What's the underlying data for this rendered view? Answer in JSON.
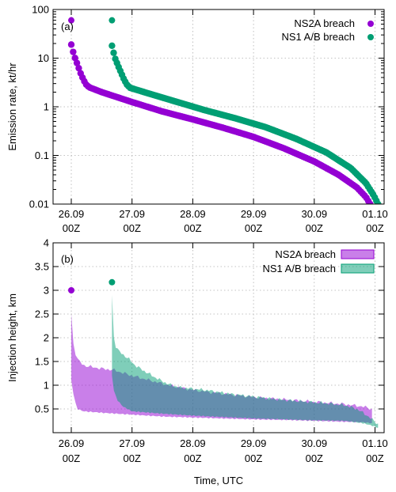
{
  "chart_data": [
    {
      "type": "scatter",
      "panel_label": "(a)",
      "xlabel": "",
      "ylabel": "Emission rate, kt/hr",
      "yscale": "log",
      "xlim": [
        -0.3,
        5.15
      ],
      "ylim": [
        0.01,
        100
      ],
      "xticks": [
        {
          "x": 0,
          "line1": "26.09",
          "line2": "00Z"
        },
        {
          "x": 1,
          "line1": "27.09",
          "line2": "00Z"
        },
        {
          "x": 2,
          "line1": "28.09",
          "line2": "00Z"
        },
        {
          "x": 3,
          "line1": "29.09",
          "line2": "00Z"
        },
        {
          "x": 4,
          "line1": "30.09",
          "line2": "00Z"
        },
        {
          "x": 5,
          "line1": "01.10",
          "line2": "00Z"
        }
      ],
      "yticks": [
        {
          "y": 0.01,
          "label": "0.01"
        },
        {
          "y": 0.1,
          "label": "0.1"
        },
        {
          "y": 1,
          "label": "1"
        },
        {
          "y": 10,
          "label": "10"
        },
        {
          "y": 100,
          "label": "100"
        }
      ],
      "grid": true,
      "legend_position": "top-right",
      "series": [
        {
          "name": "NS2A breach",
          "color": "#9400d3",
          "start_marker": {
            "x": 0.0,
            "y": 60
          },
          "points": [
            [
              0.0,
              19
            ],
            [
              0.02,
              15
            ],
            [
              0.05,
              11
            ],
            [
              0.1,
              7.5
            ],
            [
              0.15,
              5
            ],
            [
              0.2,
              3.6
            ],
            [
              0.25,
              2.8
            ],
            [
              0.3,
              2.5
            ],
            [
              0.5,
              2.0
            ],
            [
              1.0,
              1.25
            ],
            [
              1.5,
              0.8
            ],
            [
              2.0,
              0.55
            ],
            [
              2.5,
              0.37
            ],
            [
              3.0,
              0.24
            ],
            [
              3.5,
              0.14
            ],
            [
              4.0,
              0.075
            ],
            [
              4.4,
              0.04
            ],
            [
              4.7,
              0.022
            ],
            [
              4.85,
              0.014
            ],
            [
              4.92,
              0.01
            ]
          ]
        },
        {
          "name": "NS1 A/B breach",
          "color": "#009e73",
          "start_marker": {
            "x": 0.67,
            "y": 60
          },
          "points": [
            [
              0.67,
              18
            ],
            [
              0.69,
              14
            ],
            [
              0.72,
              10
            ],
            [
              0.77,
              7
            ],
            [
              0.82,
              5
            ],
            [
              0.87,
              3.6
            ],
            [
              0.92,
              2.8
            ],
            [
              0.97,
              2.45
            ],
            [
              1.2,
              2.0
            ],
            [
              1.7,
              1.3
            ],
            [
              2.2,
              0.85
            ],
            [
              2.7,
              0.58
            ],
            [
              3.2,
              0.38
            ],
            [
              3.7,
              0.22
            ],
            [
              4.2,
              0.115
            ],
            [
              4.6,
              0.055
            ],
            [
              4.85,
              0.027
            ],
            [
              4.98,
              0.015
            ],
            [
              5.05,
              0.01
            ]
          ]
        }
      ]
    },
    {
      "type": "area",
      "panel_label": "(b)",
      "xlabel": "Time, UTC",
      "ylabel": "Injection height, km",
      "xlim": [
        -0.3,
        5.15
      ],
      "ylim": [
        0,
        4
      ],
      "xticks": [
        {
          "x": 0,
          "line1": "26.09",
          "line2": "00Z"
        },
        {
          "x": 1,
          "line1": "27.09",
          "line2": "00Z"
        },
        {
          "x": 2,
          "line1": "28.09",
          "line2": "00Z"
        },
        {
          "x": 3,
          "line1": "29.09",
          "line2": "00Z"
        },
        {
          "x": 4,
          "line1": "30.09",
          "line2": "00Z"
        },
        {
          "x": 5,
          "line1": "01.10",
          "line2": "00Z"
        }
      ],
      "yticks": [
        {
          "y": 0.5,
          "label": "0.5"
        },
        {
          "y": 1,
          "label": "1"
        },
        {
          "y": 1.5,
          "label": "1.5"
        },
        {
          "y": 2,
          "label": "2"
        },
        {
          "y": 2.5,
          "label": "2.5"
        },
        {
          "y": 3,
          "label": "3"
        },
        {
          "y": 3.5,
          "label": "3.5"
        },
        {
          "y": 4,
          "label": "4"
        }
      ],
      "grid": true,
      "legend_position": "top-right",
      "series": [
        {
          "name": "NS2A breach",
          "color": "#9400d3",
          "start_marker": {
            "x": 0.0,
            "y": 3.0
          },
          "upper": [
            [
              0.0,
              2.5
            ],
            [
              0.02,
              2.0
            ],
            [
              0.05,
              1.75
            ],
            [
              0.1,
              1.55
            ],
            [
              0.2,
              1.42
            ],
            [
              0.35,
              1.38
            ],
            [
              0.5,
              1.35
            ],
            [
              0.7,
              1.32
            ],
            [
              1.0,
              1.2
            ],
            [
              1.3,
              1.1
            ],
            [
              1.6,
              1.0
            ],
            [
              2.0,
              0.9
            ],
            [
              2.5,
              0.82
            ],
            [
              3.0,
              0.75
            ],
            [
              3.5,
              0.7
            ],
            [
              4.0,
              0.65
            ],
            [
              4.5,
              0.6
            ],
            [
              4.8,
              0.55
            ],
            [
              4.95,
              0.5
            ]
          ],
          "lower": [
            [
              0.0,
              1.1
            ],
            [
              0.05,
              0.7
            ],
            [
              0.1,
              0.5
            ],
            [
              0.2,
              0.45
            ],
            [
              0.5,
              0.42
            ],
            [
              1.0,
              0.38
            ],
            [
              1.5,
              0.34
            ],
            [
              2.0,
              0.32
            ],
            [
              2.5,
              0.3
            ],
            [
              3.0,
              0.28
            ],
            [
              3.5,
              0.27
            ],
            [
              4.0,
              0.25
            ],
            [
              4.5,
              0.23
            ],
            [
              4.8,
              0.22
            ],
            [
              4.95,
              0.2
            ]
          ]
        },
        {
          "name": "NS1 A/B breach",
          "color": "#009e73",
          "start_marker": {
            "x": 0.67,
            "y": 3.17
          },
          "upper": [
            [
              0.67,
              2.9
            ],
            [
              0.69,
              2.1
            ],
            [
              0.72,
              1.85
            ],
            [
              0.78,
              1.72
            ],
            [
              0.85,
              1.65
            ],
            [
              0.95,
              1.55
            ],
            [
              1.05,
              1.42
            ],
            [
              1.2,
              1.3
            ],
            [
              1.4,
              1.15
            ],
            [
              1.6,
              1.02
            ],
            [
              1.8,
              0.95
            ],
            [
              2.2,
              0.9
            ],
            [
              2.6,
              0.82
            ],
            [
              3.0,
              0.76
            ],
            [
              3.4,
              0.7
            ],
            [
              3.8,
              0.66
            ],
            [
              4.2,
              0.62
            ],
            [
              4.5,
              0.58
            ],
            [
              4.7,
              0.5
            ],
            [
              4.85,
              0.38
            ],
            [
              4.95,
              0.28
            ],
            [
              5.05,
              0.18
            ]
          ],
          "lower": [
            [
              0.67,
              1.2
            ],
            [
              0.7,
              0.9
            ],
            [
              0.75,
              0.7
            ],
            [
              0.85,
              0.55
            ],
            [
              1.0,
              0.45
            ],
            [
              1.5,
              0.4
            ],
            [
              2.0,
              0.36
            ],
            [
              2.5,
              0.33
            ],
            [
              3.0,
              0.3
            ],
            [
              3.5,
              0.28
            ],
            [
              4.0,
              0.26
            ],
            [
              4.5,
              0.25
            ],
            [
              4.8,
              0.2
            ],
            [
              4.95,
              0.15
            ],
            [
              5.05,
              0.1
            ]
          ]
        }
      ]
    }
  ]
}
